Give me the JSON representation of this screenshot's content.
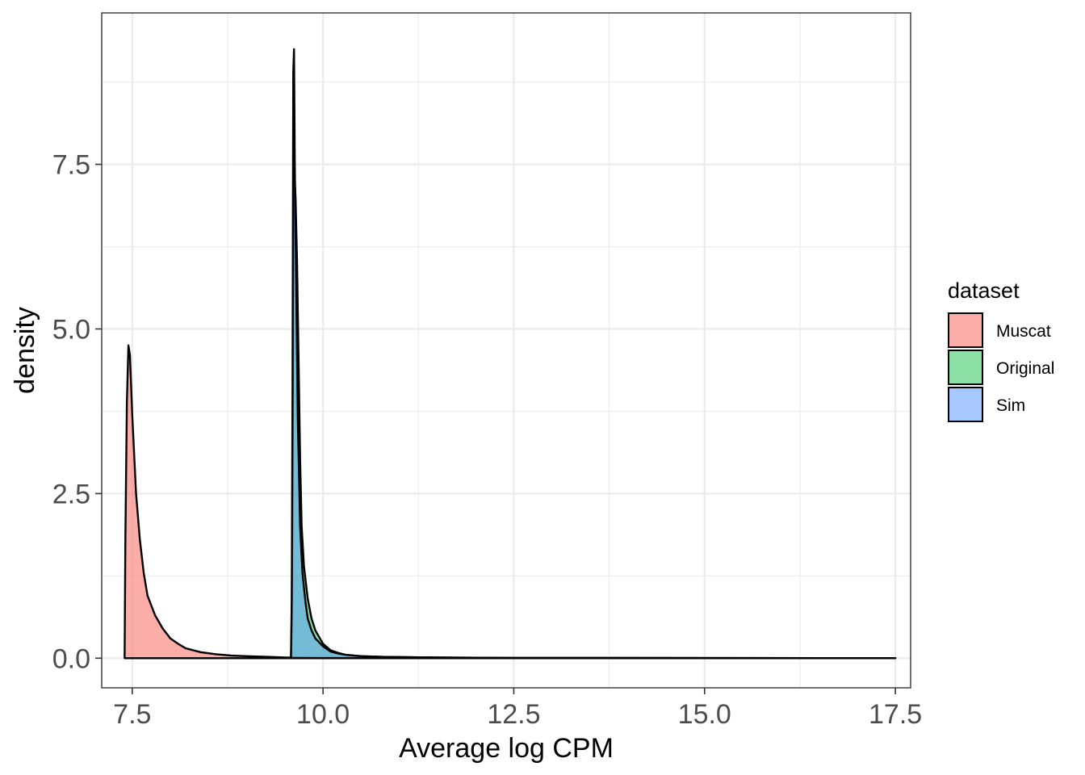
{
  "chart_data": {
    "type": "area",
    "xlabel": "Average log CPM",
    "ylabel": "density",
    "xlim": [
      7.1,
      17.7
    ],
    "ylim": [
      -0.45,
      9.8
    ],
    "x_ticks": [
      7.5,
      10.0,
      12.5,
      15.0,
      17.5
    ],
    "x_tick_labels": [
      "7.5",
      "10.0",
      "12.5",
      "15.0",
      "17.5"
    ],
    "y_ticks": [
      0.0,
      2.5,
      5.0,
      7.5
    ],
    "y_tick_labels": [
      "0.0",
      "2.5",
      "5.0",
      "7.5"
    ],
    "grid": true,
    "legend": {
      "title": "dataset",
      "position": "right",
      "entries": [
        "Muscat",
        "Original",
        "Sim"
      ]
    },
    "series": [
      {
        "name": "Muscat",
        "color": "#F8766D",
        "points": [
          [
            7.4,
            0
          ],
          [
            7.41,
            1.8
          ],
          [
            7.43,
            3.9
          ],
          [
            7.45,
            4.75
          ],
          [
            7.47,
            4.6
          ],
          [
            7.5,
            3.7
          ],
          [
            7.55,
            2.5
          ],
          [
            7.6,
            1.8
          ],
          [
            7.65,
            1.3
          ],
          [
            7.7,
            0.95
          ],
          [
            7.8,
            0.65
          ],
          [
            7.9,
            0.45
          ],
          [
            8.0,
            0.3
          ],
          [
            8.1,
            0.22
          ],
          [
            8.2,
            0.15
          ],
          [
            8.4,
            0.09
          ],
          [
            8.6,
            0.06
          ],
          [
            8.8,
            0.04
          ],
          [
            9.0,
            0.03
          ],
          [
            9.3,
            0.02
          ],
          [
            9.5,
            0.01
          ],
          [
            9.6,
            0.01
          ],
          [
            10.0,
            0.005
          ],
          [
            11.0,
            0.003
          ],
          [
            13.0,
            0.001
          ],
          [
            17.5,
            0
          ]
        ]
      },
      {
        "name": "Original",
        "color": "#00BA38",
        "points": [
          [
            9.58,
            0
          ],
          [
            9.59,
            0.6
          ],
          [
            9.6,
            2.5
          ],
          [
            9.61,
            6.0
          ],
          [
            9.62,
            7.5
          ],
          [
            9.64,
            7.0
          ],
          [
            9.66,
            6.0
          ],
          [
            9.68,
            4.5
          ],
          [
            9.7,
            3.0
          ],
          [
            9.72,
            2.0
          ],
          [
            9.75,
            1.4
          ],
          [
            9.8,
            0.9
          ],
          [
            9.85,
            0.6
          ],
          [
            9.9,
            0.42
          ],
          [
            10.0,
            0.22
          ],
          [
            10.1,
            0.12
          ],
          [
            10.2,
            0.08
          ],
          [
            10.3,
            0.05
          ],
          [
            10.5,
            0.03
          ],
          [
            10.8,
            0.02
          ],
          [
            11.5,
            0.01
          ],
          [
            12.5,
            0.005
          ],
          [
            17.5,
            0
          ]
        ]
      },
      {
        "name": "Sim",
        "color": "#619CFF",
        "points": [
          [
            9.58,
            0
          ],
          [
            9.59,
            0.9
          ],
          [
            9.6,
            4.0
          ],
          [
            9.61,
            8.9
          ],
          [
            9.62,
            9.25
          ],
          [
            9.63,
            7.5
          ],
          [
            9.65,
            5.5
          ],
          [
            9.67,
            3.6
          ],
          [
            9.7,
            2.0
          ],
          [
            9.73,
            1.3
          ],
          [
            9.77,
            0.85
          ],
          [
            9.8,
            0.6
          ],
          [
            9.85,
            0.42
          ],
          [
            9.9,
            0.3
          ],
          [
            10.0,
            0.18
          ],
          [
            10.1,
            0.1
          ],
          [
            10.2,
            0.07
          ],
          [
            10.3,
            0.05
          ],
          [
            10.5,
            0.03
          ],
          [
            10.8,
            0.02
          ],
          [
            11.5,
            0.01
          ],
          [
            12.5,
            0.005
          ],
          [
            17.5,
            0
          ]
        ]
      }
    ]
  }
}
